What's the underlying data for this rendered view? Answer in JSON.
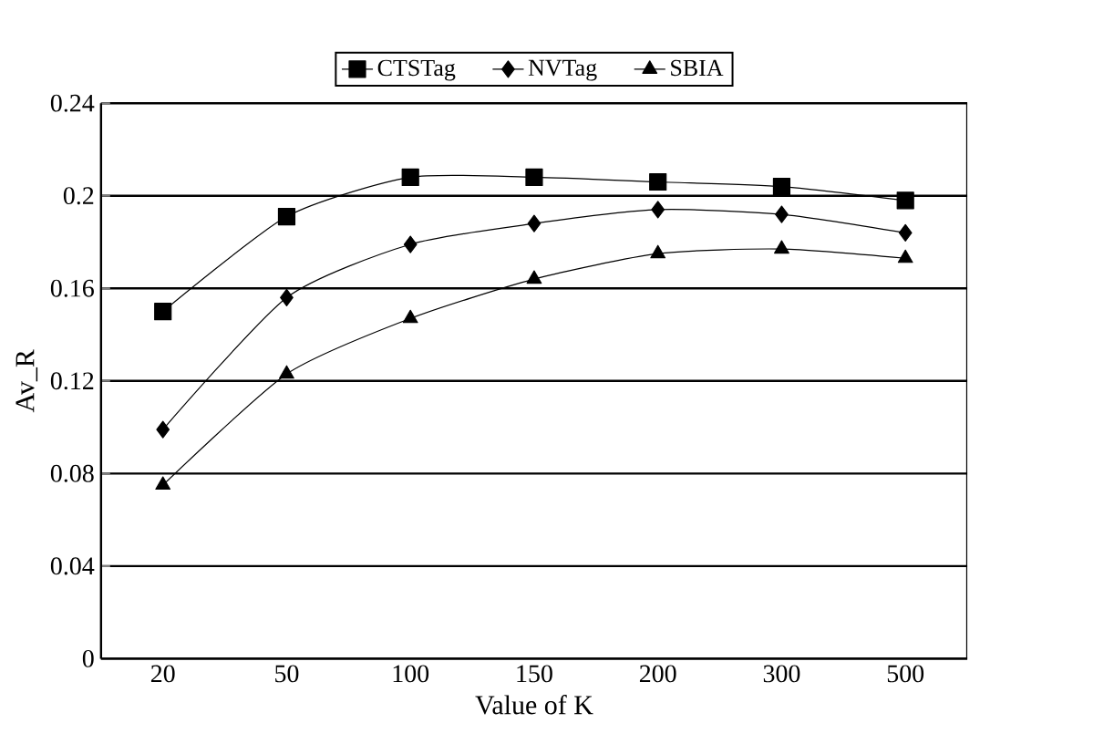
{
  "chart_data": {
    "type": "line",
    "xlabel": "Value of K",
    "ylabel": "Av_R",
    "categories": [
      "20",
      "50",
      "100",
      "150",
      "200",
      "300",
      "500"
    ],
    "series": [
      {
        "name": "CTSTag",
        "color": "#000000",
        "marker": "square",
        "values": [
          0.15,
          0.191,
          0.208,
          0.208,
          0.206,
          0.204,
          0.198
        ]
      },
      {
        "name": "NVTag",
        "color": "#000000",
        "marker": "diamond",
        "values": [
          0.099,
          0.156,
          0.179,
          0.188,
          0.194,
          0.192,
          0.184
        ]
      },
      {
        "name": "SBIA",
        "color": "#000000",
        "marker": "triangle",
        "values": [
          0.075,
          0.123,
          0.147,
          0.164,
          0.175,
          0.177,
          0.173
        ]
      }
    ],
    "ylim": [
      0,
      0.24
    ],
    "yticks": [
      0,
      0.04,
      0.08,
      0.12,
      0.16,
      0.2,
      0.24
    ],
    "grid": "y",
    "legend": "top",
    "line_style": "solid"
  }
}
